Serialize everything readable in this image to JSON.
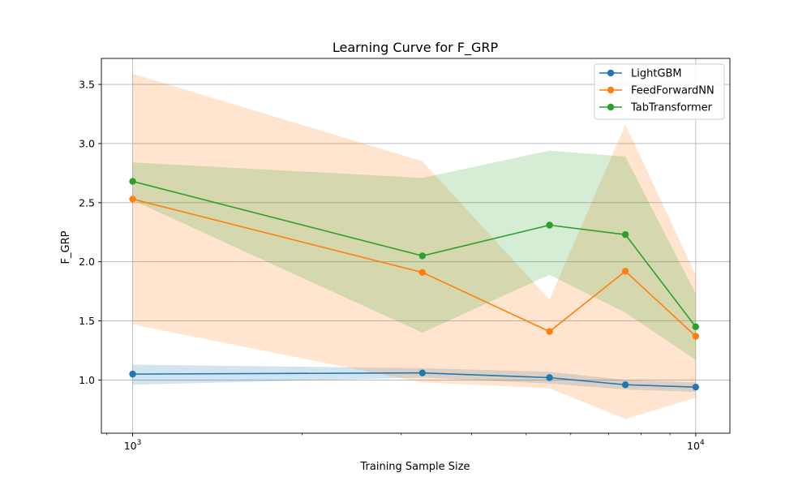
{
  "chart_data": {
    "type": "line",
    "title": "Learning Curve for F_GRP",
    "xlabel": "Training Sample Size",
    "ylabel": "F_GRP",
    "x_scale": "log",
    "xlim": [
      880,
      11500
    ],
    "ylim": [
      0.55,
      3.72
    ],
    "x_ticks": [
      {
        "value": 1000,
        "base": "10",
        "exp": "3"
      },
      {
        "value": 10000,
        "base": "10",
        "exp": "4"
      }
    ],
    "y_ticks": [
      1.0,
      1.5,
      2.0,
      2.5,
      3.0,
      3.5
    ],
    "y_tick_labels": [
      "1.0",
      "1.5",
      "2.0",
      "2.5",
      "3.0",
      "3.5"
    ],
    "grid": true,
    "legend_position": "upper right",
    "x": [
      1000,
      3270,
      5500,
      7500,
      10000
    ],
    "series": [
      {
        "name": "LightGBM",
        "color": "#1f77b4",
        "values": [
          1.05,
          1.06,
          1.02,
          0.96,
          0.94
        ],
        "band_upper": [
          1.13,
          1.1,
          1.07,
          1.0,
          0.98
        ],
        "band_lower": [
          0.96,
          1.02,
          0.97,
          0.92,
          0.9
        ]
      },
      {
        "name": "FeedForwardNN",
        "color": "#ff7f0e",
        "values": [
          2.53,
          1.91,
          1.41,
          1.92,
          1.37
        ],
        "band_upper": [
          3.59,
          2.85,
          1.68,
          3.16,
          1.89
        ],
        "band_lower": [
          1.47,
          0.98,
          0.93,
          0.67,
          0.85
        ]
      },
      {
        "name": "TabTransformer",
        "color": "#2ca02c",
        "values": [
          2.68,
          2.05,
          2.31,
          2.23,
          1.45
        ],
        "band_upper": [
          2.84,
          2.71,
          2.94,
          2.89,
          1.73
        ],
        "band_lower": [
          2.52,
          1.4,
          1.89,
          1.57,
          1.17
        ]
      }
    ]
  }
}
